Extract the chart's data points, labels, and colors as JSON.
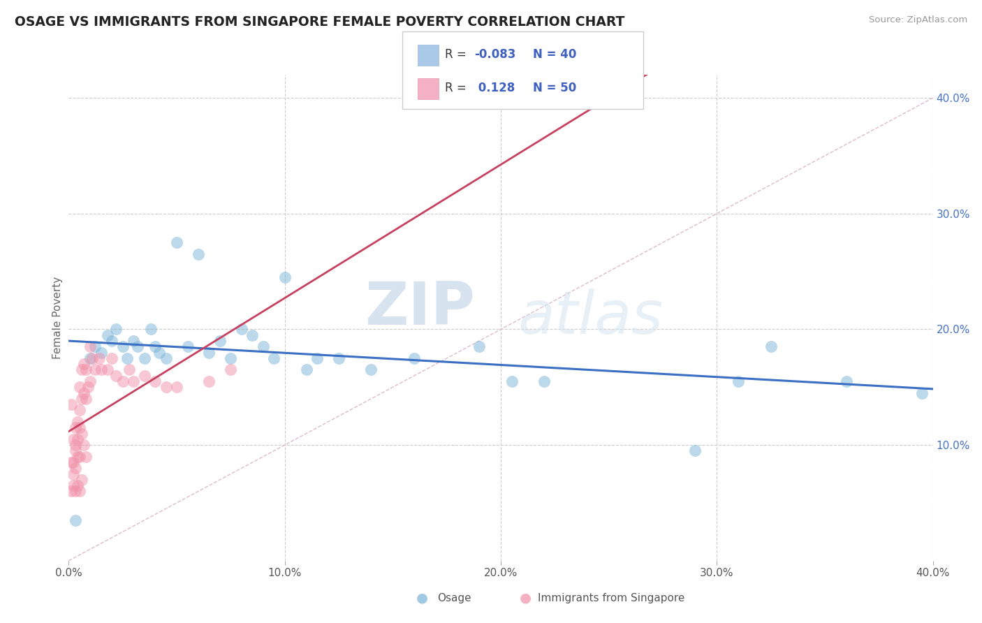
{
  "title": "OSAGE VS IMMIGRANTS FROM SINGAPORE FEMALE POVERTY CORRELATION CHART",
  "source": "Source: ZipAtlas.com",
  "ylabel": "Female Poverty",
  "xlim": [
    0.0,
    0.4
  ],
  "ylim": [
    0.0,
    0.42
  ],
  "xtick_labels": [
    "0.0%",
    "",
    "",
    "",
    "10.0%",
    "",
    "",
    "",
    "",
    "20.0%",
    "",
    "",
    "",
    "",
    "30.0%",
    "",
    "",
    "",
    "",
    "40.0%"
  ],
  "ytick_labels": [
    "10.0%",
    "20.0%",
    "30.0%",
    "40.0%"
  ],
  "ytick_vals": [
    0.1,
    0.2,
    0.3,
    0.4
  ],
  "series1_name": "Osage",
  "series2_name": "Immigrants from Singapore",
  "series1_color": "#7ab3d8",
  "series2_color": "#f090a8",
  "series1_line_color": "#3a6fc4",
  "series2_line_color": "#c84060",
  "watermark_zip": "ZIP",
  "watermark_atlas": "atlas",
  "background_color": "#ffffff",
  "grid_color": "#cccccc",
  "osage_x": [
    0.003,
    0.01,
    0.012,
    0.015,
    0.018,
    0.02,
    0.022,
    0.025,
    0.027,
    0.03,
    0.032,
    0.035,
    0.038,
    0.04,
    0.042,
    0.045,
    0.05,
    0.055,
    0.06,
    0.065,
    0.07,
    0.075,
    0.08,
    0.085,
    0.09,
    0.095,
    0.1,
    0.11,
    0.115,
    0.125,
    0.14,
    0.16,
    0.19,
    0.205,
    0.22,
    0.29,
    0.31,
    0.325,
    0.36,
    0.395
  ],
  "osage_y": [
    0.035,
    0.175,
    0.185,
    0.18,
    0.195,
    0.19,
    0.2,
    0.185,
    0.175,
    0.19,
    0.185,
    0.175,
    0.2,
    0.185,
    0.18,
    0.175,
    0.275,
    0.185,
    0.265,
    0.18,
    0.19,
    0.175,
    0.2,
    0.195,
    0.185,
    0.175,
    0.245,
    0.165,
    0.175,
    0.175,
    0.165,
    0.175,
    0.185,
    0.155,
    0.155,
    0.095,
    0.155,
    0.185,
    0.155,
    0.145
  ],
  "singapore_x": [
    0.001,
    0.001,
    0.001,
    0.002,
    0.002,
    0.002,
    0.002,
    0.003,
    0.003,
    0.003,
    0.003,
    0.003,
    0.004,
    0.004,
    0.004,
    0.004,
    0.005,
    0.005,
    0.005,
    0.005,
    0.005,
    0.006,
    0.006,
    0.006,
    0.006,
    0.007,
    0.007,
    0.007,
    0.008,
    0.008,
    0.008,
    0.009,
    0.01,
    0.01,
    0.011,
    0.012,
    0.014,
    0.015,
    0.018,
    0.02,
    0.022,
    0.025,
    0.028,
    0.03,
    0.035,
    0.04,
    0.045,
    0.05,
    0.065,
    0.075
  ],
  "singapore_y": [
    0.135,
    0.085,
    0.06,
    0.105,
    0.085,
    0.075,
    0.065,
    0.115,
    0.1,
    0.095,
    0.08,
    0.06,
    0.12,
    0.105,
    0.09,
    0.065,
    0.15,
    0.13,
    0.115,
    0.09,
    0.06,
    0.165,
    0.14,
    0.11,
    0.07,
    0.17,
    0.145,
    0.1,
    0.165,
    0.14,
    0.09,
    0.15,
    0.185,
    0.155,
    0.175,
    0.165,
    0.175,
    0.165,
    0.165,
    0.175,
    0.16,
    0.155,
    0.165,
    0.155,
    0.16,
    0.155,
    0.15,
    0.15,
    0.155,
    0.165
  ],
  "r1": -0.083,
  "n1": 40,
  "r2": 0.128,
  "n2": 50
}
